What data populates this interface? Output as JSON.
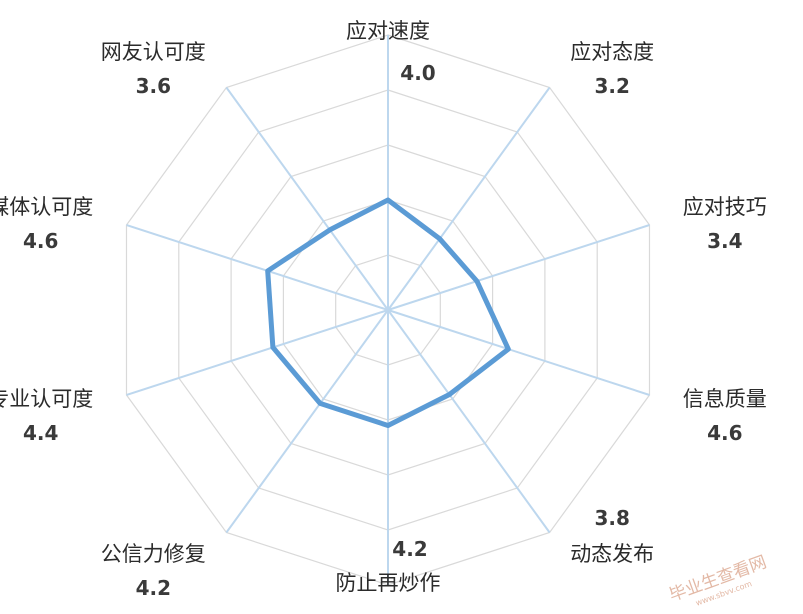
{
  "chart_data": {
    "type": "radar",
    "title": "",
    "categories": [
      "应对速度",
      "应对态度",
      "应对技巧",
      "信息质量",
      "动态发布",
      "防止再炒作",
      "公信力修复",
      "专业认可度",
      "媒体认可度",
      "网友认可度"
    ],
    "values": [
      4.0,
      3.2,
      3.4,
      4.6,
      3.8,
      4.2,
      4.2,
      4.4,
      4.6,
      3.6
    ],
    "value_labels": [
      "4.0",
      "3.2",
      "3.4",
      "4.6",
      "3.8",
      "4.2",
      "4.2",
      "4.4",
      "4.6",
      "3.6"
    ],
    "rmin": 0,
    "rmax": 10,
    "gridlines": true,
    "grid_levels": 5,
    "series_color": "#5b9bd5",
    "axis_color": "#bdd7ee",
    "grid_color": "#d9d9d9"
  },
  "watermark": {
    "text": "毕业生查看网",
    "sub": "www.sbvv.com"
  }
}
